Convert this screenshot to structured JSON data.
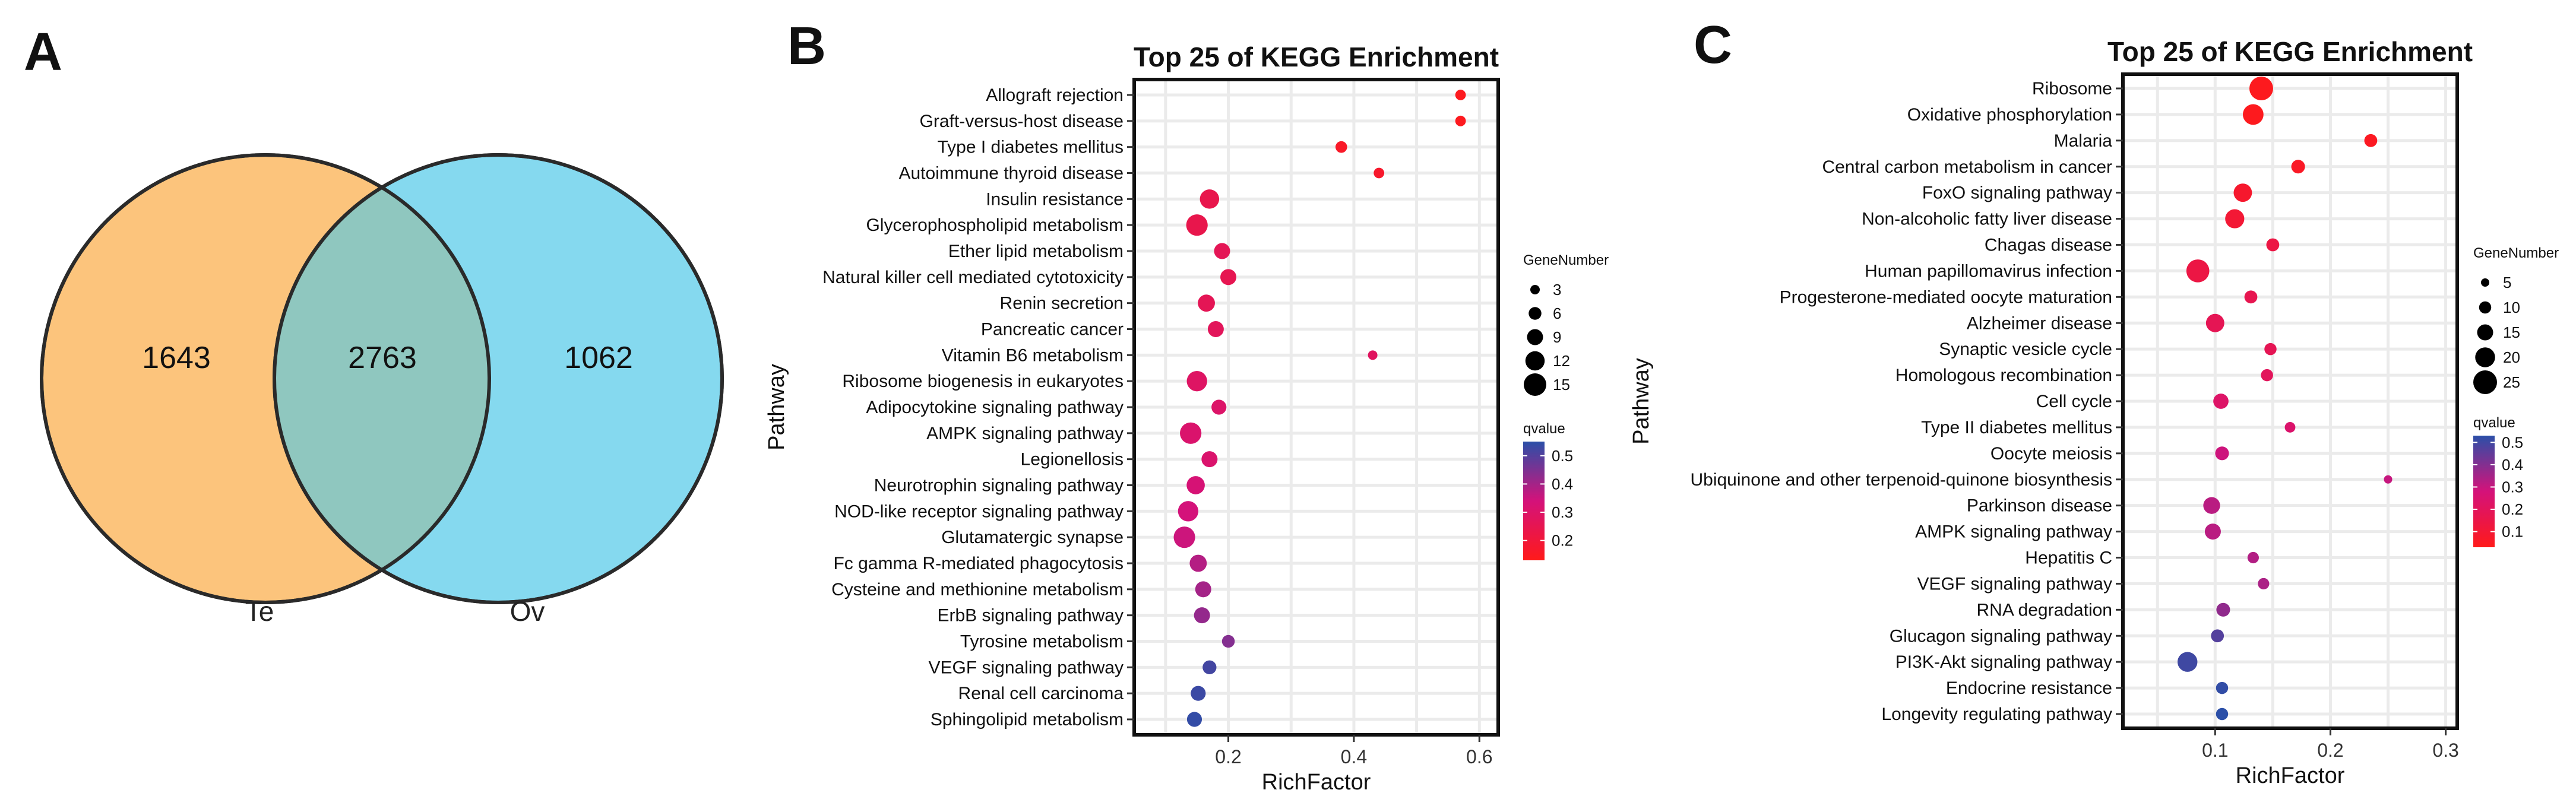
{
  "panels": {
    "a": {
      "letter": "A",
      "left_label": "Te",
      "right_label": "Ov",
      "left_only": "1643",
      "overlap": "2763",
      "right_only": "1062",
      "left_color": "#fcc47c",
      "right_color": "#85d9ef",
      "overlap_color": "#8fc7bf"
    },
    "b": {
      "letter": "B"
    },
    "c": {
      "letter": "C"
    }
  },
  "chart_data": [
    {
      "type": "venn",
      "sets": [
        "Te",
        "Ov"
      ],
      "values": {
        "Te_only": 1643,
        "overlap": 2763,
        "Ov_only": 1062
      }
    },
    {
      "type": "scatter",
      "title": "Top 25 of KEGG Enrichment",
      "xlabel": "RichFactor",
      "ylabel": "Pathway",
      "xlim": [
        0.05,
        0.63
      ],
      "xticks": [
        0.2,
        0.4,
        0.6
      ],
      "grid": true,
      "size_legend": {
        "title": "GeneNumber",
        "values": [
          3,
          6,
          9,
          12,
          15
        ]
      },
      "color_legend": {
        "title": "qvalue",
        "ticks": [
          0.2,
          0.3,
          0.4,
          0.5
        ],
        "range": [
          0.13,
          0.55
        ],
        "low_color": "#ff1a1a",
        "mid_color": "#d4127a",
        "high_color": "#2b4fa8"
      },
      "categories": [
        "Allograft rejection",
        "Graft-versus-host disease",
        "Type I diabetes mellitus",
        "Autoimmune thyroid disease",
        "Insulin resistance",
        "Glycerophospholipid metabolism",
        "Ether lipid metabolism",
        "Natural killer cell mediated cytotoxicity",
        "Renin secretion",
        "Pancreatic cancer",
        "Vitamin B6 metabolism",
        "Ribosome biogenesis in eukaryotes",
        "Adipocytokine signaling pathway",
        "AMPK signaling pathway",
        "Legionellosis",
        "Neurotrophin signaling pathway",
        "NOD-like receptor signaling pathway",
        "Glutamatergic synapse",
        "Fc gamma R-mediated phagocytosis",
        "Cysteine and methionine metabolism",
        "ErbB signaling pathway",
        "Tyrosine metabolism",
        "VEGF signaling pathway",
        "Renal cell carcinoma",
        "Sphingolipid metabolism"
      ],
      "richfactor": [
        0.57,
        0.57,
        0.38,
        0.44,
        0.17,
        0.15,
        0.19,
        0.2,
        0.165,
        0.18,
        0.43,
        0.15,
        0.185,
        0.14,
        0.17,
        0.148,
        0.136,
        0.13,
        0.152,
        0.16,
        0.158,
        0.2,
        0.17,
        0.152,
        0.146
      ],
      "gene_number": [
        4,
        4,
        5,
        4,
        12,
        14,
        9,
        9,
        10,
        9,
        3,
        13,
        8,
        14,
        9,
        11,
        13,
        14,
        10,
        9,
        9,
        6,
        7,
        8,
        8
      ],
      "qvalue": [
        0.14,
        0.14,
        0.16,
        0.17,
        0.24,
        0.24,
        0.26,
        0.25,
        0.26,
        0.27,
        0.28,
        0.29,
        0.3,
        0.31,
        0.31,
        0.33,
        0.34,
        0.35,
        0.38,
        0.4,
        0.42,
        0.44,
        0.52,
        0.53,
        0.54
      ]
    },
    {
      "type": "scatter",
      "title": "Top 25 of KEGG Enrichment",
      "xlabel": "RichFactor",
      "ylabel": "Pathway",
      "xlim": [
        0.02,
        0.31
      ],
      "xticks": [
        0.1,
        0.2,
        0.3
      ],
      "grid": true,
      "size_legend": {
        "title": "GeneNumber",
        "values": [
          5,
          10,
          15,
          20,
          25
        ]
      },
      "color_legend": {
        "title": "qvalue",
        "ticks": [
          0.1,
          0.2,
          0.3,
          0.4,
          0.5
        ],
        "range": [
          0.03,
          0.53
        ],
        "low_color": "#ff1a1a",
        "mid_color": "#d4127a",
        "high_color": "#2b4fa8"
      },
      "categories": [
        "Ribosome",
        "Oxidative phosphorylation",
        "Malaria",
        "Central carbon metabolism in cancer",
        "FoxO signaling pathway",
        "Non-alcoholic fatty liver disease",
        "Chagas disease",
        "Human papillomavirus infection",
        "Progesterone-mediated oocyte maturation",
        "Alzheimer disease",
        "Synaptic vesicle cycle",
        "Homologous recombination",
        "Cell cycle",
        "Type II diabetes mellitus",
        "Oocyte meiosis",
        "Ubiquinone and other terpenoid-quinone biosynthesis",
        "Parkinson disease",
        "AMPK signaling pathway",
        "Hepatitis C",
        "VEGF signaling pathway",
        "RNA degradation",
        "Glucagon signaling pathway",
        "PI3K-Akt signaling pathway",
        "Endocrine resistance",
        "Longevity regulating pathway"
      ],
      "richfactor": [
        0.14,
        0.133,
        0.235,
        0.172,
        0.124,
        0.117,
        0.15,
        0.085,
        0.131,
        0.1,
        0.148,
        0.145,
        0.105,
        0.165,
        0.106,
        0.25,
        0.097,
        0.098,
        0.133,
        0.142,
        0.107,
        0.102,
        0.076,
        0.106,
        0.106
      ],
      "gene_number": [
        25,
        21,
        11,
        12,
        18,
        19,
        11,
        24,
        11,
        18,
        10,
        10,
        14,
        8,
        12,
        5,
        16,
        15,
        9,
        9,
        12,
        11,
        20,
        10,
        10
      ],
      "qvalue": [
        0.04,
        0.04,
        0.05,
        0.06,
        0.08,
        0.1,
        0.14,
        0.14,
        0.17,
        0.18,
        0.18,
        0.2,
        0.23,
        0.24,
        0.29,
        0.3,
        0.32,
        0.32,
        0.33,
        0.34,
        0.38,
        0.47,
        0.5,
        0.52,
        0.53
      ]
    }
  ]
}
